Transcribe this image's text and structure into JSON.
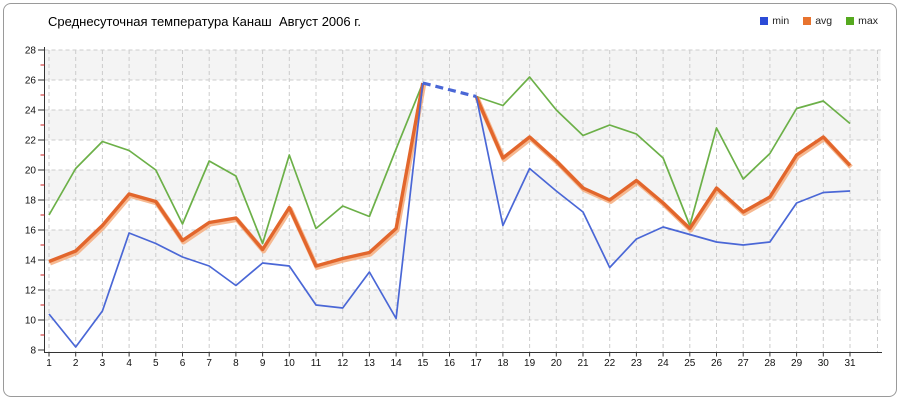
{
  "title": "Среднесуточная температура Канаш  Август 2006 г.",
  "legend": [
    {
      "label": "min",
      "color": "#2b4bd7"
    },
    {
      "label": "avg",
      "color": "#e8732e"
    },
    {
      "label": "max",
      "color": "#55a91f"
    }
  ],
  "colors": {
    "grid": "#cccccc",
    "band": "#f4f4f4",
    "axis": "#333333",
    "minor_tick": "#cc2222",
    "halo": "#f4ad7e"
  },
  "chart_data": {
    "type": "line",
    "title": "Среднесуточная температура Канаш  Август 2006 г.",
    "x_ticks": [
      1,
      2,
      3,
      4,
      5,
      6,
      7,
      8,
      9,
      10,
      11,
      12,
      13,
      14,
      15,
      16,
      17,
      18,
      19,
      20,
      21,
      22,
      23,
      24,
      25,
      26,
      27,
      28,
      29,
      30,
      31
    ],
    "ylim": [
      8,
      28
    ],
    "y_tick_step": 2,
    "grid": true,
    "legend_position": "top-right",
    "missing_data": {
      "day": 16,
      "style": "dashed blue bridge between day 15 and day 17"
    },
    "series": [
      {
        "name": "min",
        "color": "#4a67d6",
        "line_width": 1.7,
        "values": [
          10.4,
          8.2,
          10.6,
          15.8,
          15.1,
          14.2,
          13.6,
          12.3,
          13.8,
          13.6,
          11.0,
          10.8,
          13.2,
          10.1,
          25.8,
          null,
          24.9,
          16.3,
          20.1,
          18.6,
          17.2,
          13.5,
          15.4,
          16.2,
          15.7,
          15.2,
          15.0,
          15.2,
          17.8,
          18.5,
          18.6
        ]
      },
      {
        "name": "avg",
        "color": "#e2662c",
        "line_width": 3.4,
        "values": [
          13.9,
          14.6,
          16.3,
          18.4,
          17.9,
          15.3,
          16.5,
          16.8,
          14.7,
          17.5,
          13.6,
          14.1,
          14.5,
          16.1,
          25.8,
          null,
          24.9,
          20.8,
          22.2,
          20.6,
          18.8,
          18.0,
          19.3,
          17.8,
          16.1,
          18.8,
          17.2,
          18.2,
          21.0,
          22.2,
          20.3
        ]
      },
      {
        "name": "max",
        "color": "#6cb048",
        "line_width": 1.7,
        "values": [
          17.0,
          20.1,
          21.9,
          21.3,
          20.0,
          16.4,
          20.6,
          19.6,
          15.1,
          21.0,
          16.1,
          17.6,
          16.9,
          21.4,
          25.8,
          null,
          24.9,
          24.3,
          26.2,
          24.0,
          22.3,
          23.0,
          22.4,
          20.8,
          16.3,
          22.8,
          19.4,
          21.1,
          24.1,
          24.6,
          23.1
        ]
      }
    ]
  }
}
